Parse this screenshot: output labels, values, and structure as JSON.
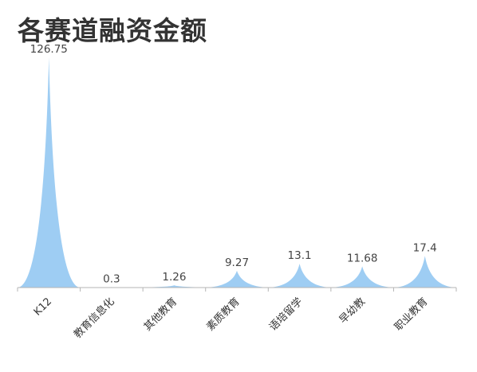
{
  "chart_data": {
    "type": "area",
    "title": "各赛道融资金额",
    "xlabel": "",
    "ylabel": "",
    "categories": [
      "K12",
      "教育信息化",
      "其他教育",
      "素质教育",
      "语培留学",
      "早幼教",
      "职业教育"
    ],
    "values": [
      126.75,
      0.3,
      1.26,
      9.27,
      13.1,
      11.68,
      17.4
    ],
    "ylim": [
      0,
      126.75
    ],
    "grid": false,
    "legend": "none",
    "colors": {
      "fill": "#9ecdf3",
      "axis": "#b5b5b5"
    }
  }
}
